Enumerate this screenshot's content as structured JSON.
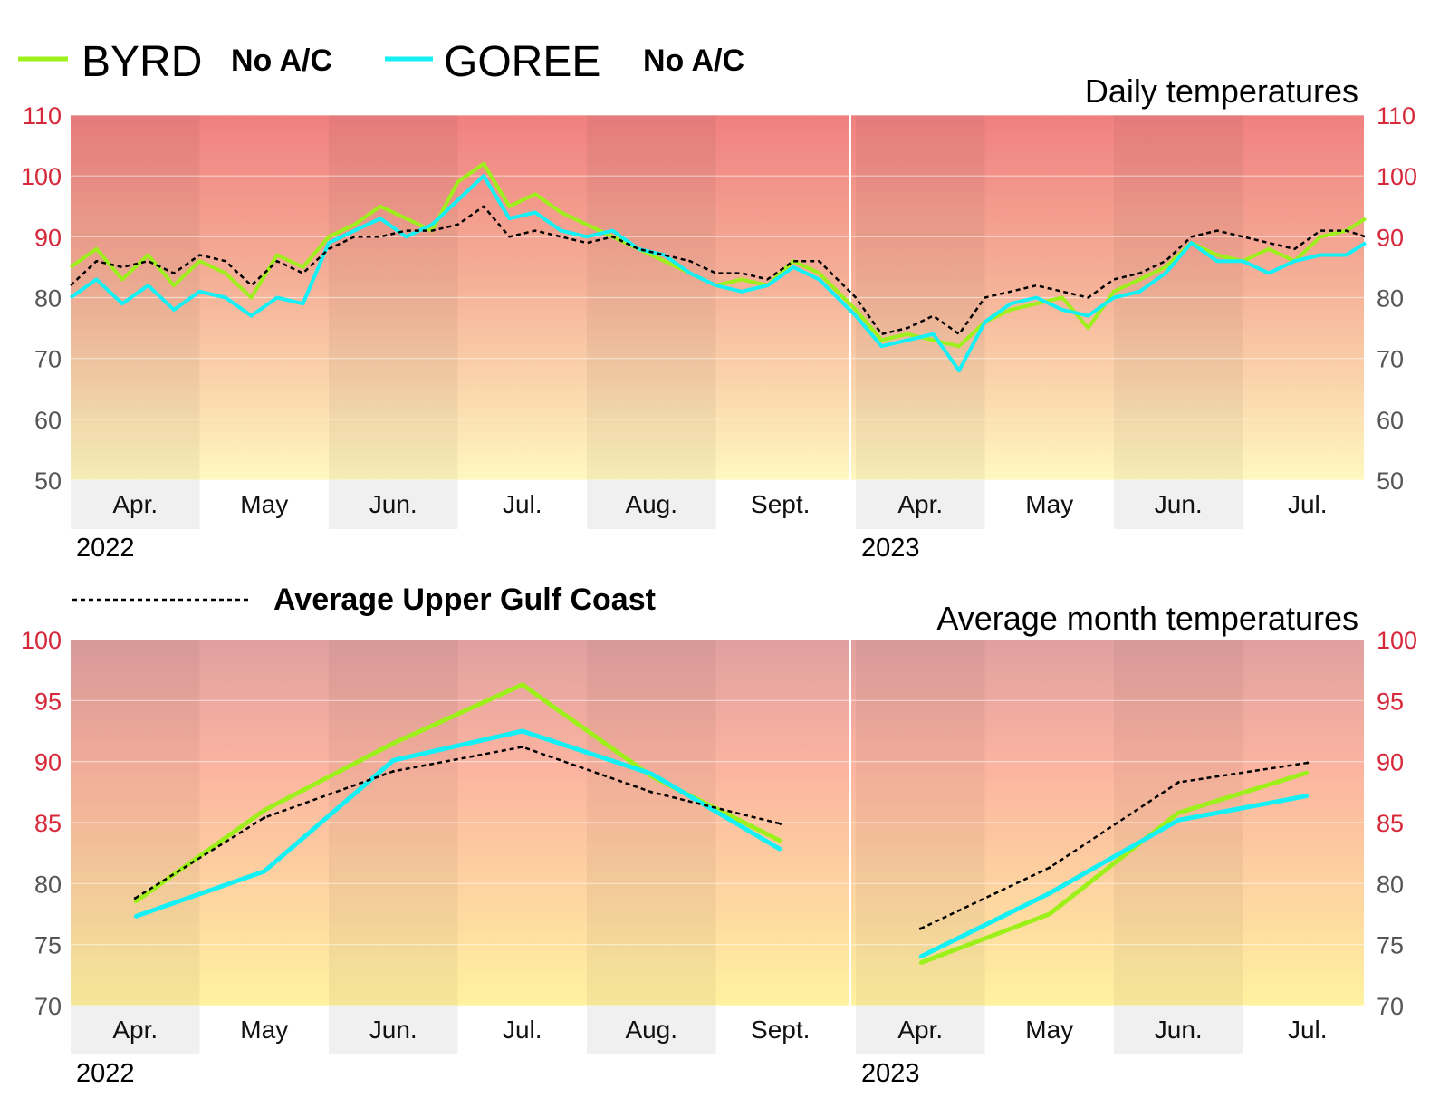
{
  "colors": {
    "byrd": "#9ef01a",
    "goree": "#14f0f5",
    "average": "#000000",
    "tick_red": "#d62839",
    "tick_gray": "#555555",
    "band": "#f0f0f0"
  },
  "legend": {
    "series": [
      {
        "name": "BYRD",
        "note": "No A/C"
      },
      {
        "name": "GOREE",
        "note": "No A/C"
      }
    ],
    "average_label": "Average Upper Gulf Coast"
  },
  "chart_data": [
    {
      "type": "line",
      "title": "Daily temperatures",
      "ylim": [
        50,
        110
      ],
      "yticks": [
        50,
        60,
        70,
        80,
        90,
        100,
        110
      ],
      "years": [
        "2022",
        "2023"
      ],
      "months": [
        "Apr.",
        "May",
        "Jun.",
        "Jul.",
        "Aug.",
        "Sept.",
        "Apr.",
        "May",
        "Jun.",
        "Jul."
      ],
      "x_unit": "month index (0 = start of Apr. 2022 panel, 6 = start of Apr. 2023 panel)",
      "series": [
        {
          "name": "BYRD",
          "x": [
            0,
            0.2,
            0.4,
            0.6,
            0.8,
            1,
            1.2,
            1.4,
            1.6,
            1.8,
            2,
            2.2,
            2.4,
            2.6,
            2.8,
            3,
            3.2,
            3.4,
            3.6,
            3.8,
            4,
            4.2,
            4.4,
            4.6,
            4.8,
            5,
            5.2,
            5.4,
            5.6,
            5.8,
            6,
            6.2,
            6.4,
            6.6,
            6.8,
            7,
            7.2,
            7.4,
            7.6,
            7.8,
            8,
            8.2,
            8.4,
            8.6,
            8.8,
            9,
            9.2,
            9.4,
            9.6,
            9.8,
            9.95
          ],
          "y": [
            85,
            88,
            83,
            87,
            82,
            86,
            84,
            80,
            87,
            85,
            90,
            92,
            95,
            93,
            91,
            99,
            102,
            95,
            97,
            94,
            92,
            90,
            88,
            86,
            84,
            82,
            83,
            82,
            86,
            84,
            78,
            73,
            74,
            73,
            72,
            76,
            78,
            79,
            80,
            75,
            81,
            83,
            85,
            89,
            87,
            86,
            88,
            86,
            90,
            91,
            93
          ]
        },
        {
          "name": "GOREE",
          "x": [
            0,
            0.2,
            0.4,
            0.6,
            0.8,
            1,
            1.2,
            1.4,
            1.6,
            1.8,
            2,
            2.2,
            2.4,
            2.6,
            2.8,
            3,
            3.2,
            3.4,
            3.6,
            3.8,
            4,
            4.2,
            4.4,
            4.6,
            4.8,
            5,
            5.2,
            5.4,
            5.6,
            5.8,
            6,
            6.2,
            6.4,
            6.6,
            6.8,
            7,
            7.2,
            7.4,
            7.6,
            7.8,
            8,
            8.2,
            8.4,
            8.6,
            8.8,
            9,
            9.2,
            9.4,
            9.6,
            9.8,
            9.95
          ],
          "y": [
            80,
            83,
            79,
            82,
            78,
            81,
            80,
            77,
            80,
            79,
            89,
            91,
            93,
            90,
            92,
            96,
            100,
            93,
            94,
            91,
            90,
            91,
            88,
            87,
            84,
            82,
            81,
            82,
            85,
            83,
            77,
            72,
            73,
            74,
            68,
            76,
            79,
            80,
            78,
            77,
            80,
            81,
            84,
            89,
            86,
            86,
            84,
            86,
            87,
            87,
            89
          ]
        },
        {
          "name": "Average Upper Gulf Coast",
          "x": [
            0,
            0.2,
            0.4,
            0.6,
            0.8,
            1,
            1.2,
            1.4,
            1.6,
            1.8,
            2,
            2.2,
            2.4,
            2.6,
            2.8,
            3,
            3.2,
            3.4,
            3.6,
            3.8,
            4,
            4.2,
            4.4,
            4.6,
            4.8,
            5,
            5.2,
            5.4,
            5.6,
            5.8,
            6,
            6.2,
            6.4,
            6.6,
            6.8,
            7,
            7.2,
            7.4,
            7.6,
            7.8,
            8,
            8.2,
            8.4,
            8.6,
            8.8,
            9,
            9.2,
            9.4,
            9.6,
            9.8,
            9.95
          ],
          "y": [
            82,
            86,
            85,
            86,
            84,
            87,
            86,
            82,
            86,
            84,
            88,
            90,
            90,
            91,
            91,
            92,
            95,
            90,
            91,
            90,
            89,
            90,
            88,
            87,
            86,
            84,
            84,
            83,
            86,
            86,
            80,
            74,
            75,
            77,
            74,
            80,
            81,
            82,
            81,
            80,
            83,
            84,
            86,
            90,
            91,
            90,
            89,
            88,
            91,
            91,
            90
          ]
        }
      ]
    },
    {
      "type": "line",
      "title": "Average month temperatures",
      "ylim": [
        70,
        100
      ],
      "yticks": [
        70,
        75,
        80,
        85,
        90,
        95,
        100
      ],
      "years": [
        "2022",
        "2023"
      ],
      "months": [
        "Apr.",
        "May",
        "Jun.",
        "Jul.",
        "Aug.",
        "Sept.",
        "Apr.",
        "May",
        "Jun.",
        "Jul."
      ],
      "series": [
        {
          "name": "BYRD",
          "x": [
            "Apr. 2022",
            "May 2022",
            "Jun. 2022",
            "Jul. 2022",
            "Aug. 2022",
            "Sept. 2022"
          ],
          "y": [
            78.5,
            86.0,
            91.5,
            96.3,
            88.8,
            83.5
          ]
        },
        {
          "name": "BYRD",
          "x": [
            "Apr. 2023",
            "May 2023",
            "Jun. 2023",
            "Jul. 2023"
          ],
          "y": [
            73.5,
            77.5,
            85.8,
            89.1
          ]
        },
        {
          "name": "GOREE",
          "x": [
            "Apr. 2022",
            "May 2022",
            "Jun. 2022",
            "Jul. 2022",
            "Aug. 2022",
            "Sept. 2022"
          ],
          "y": [
            77.3,
            81.0,
            90.1,
            92.5,
            89.0,
            82.8
          ]
        },
        {
          "name": "GOREE",
          "x": [
            "Apr. 2023",
            "May 2023",
            "Jun. 2023",
            "Jul. 2023"
          ],
          "y": [
            74.0,
            79.2,
            85.2,
            87.2
          ]
        },
        {
          "name": "Average Upper Gulf Coast",
          "x": [
            "Apr. 2022",
            "May 2022",
            "Jun. 2022",
            "Jul. 2022",
            "Aug. 2022",
            "Sept. 2022"
          ],
          "y": [
            78.8,
            85.4,
            89.2,
            91.2,
            87.5,
            84.9
          ]
        },
        {
          "name": "Average Upper Gulf Coast",
          "x": [
            "Apr. 2023",
            "May 2023",
            "Jun. 2023",
            "Jul. 2023"
          ],
          "y": [
            76.3,
            81.3,
            88.3,
            89.9
          ]
        }
      ]
    }
  ]
}
